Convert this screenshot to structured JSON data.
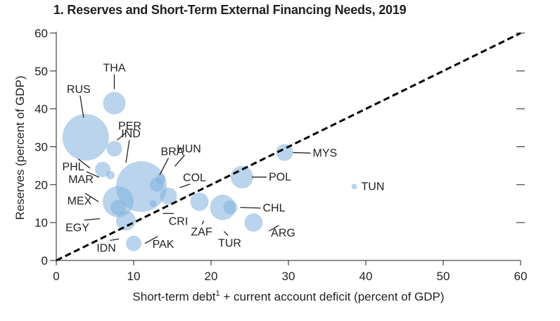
{
  "chart_data": {
    "type": "scatter",
    "title": "1. Reserves and Short-Term External Financing Needs, 2019",
    "xlabel": "Short-term debt",
    "xlabel_sup": "1",
    "xlabel_rest": " + current account deficit (percent of GDP)",
    "ylabel": "Reserves (percent of GDP)",
    "xlim": [
      0,
      60
    ],
    "ylim": [
      0,
      60
    ],
    "xticks": [
      0,
      10,
      20,
      30,
      40,
      50,
      60
    ],
    "yticks": [
      0,
      10,
      20,
      30,
      40,
      50,
      60
    ],
    "reference_line": {
      "style": "dashed",
      "from": [
        0,
        0
      ],
      "to": [
        60,
        60
      ]
    },
    "bubble_color": "#7fb0dc",
    "points": [
      {
        "label": "THA",
        "x": 7.5,
        "y": 41.5,
        "size": 16
      },
      {
        "label": "RUS",
        "x": 3.8,
        "y": 32.5,
        "size": 33
      },
      {
        "label": "PER",
        "x": 7.5,
        "y": 29.5,
        "size": 11
      },
      {
        "label": "IND",
        "x": 11.0,
        "y": 19.5,
        "size": 36
      },
      {
        "label": "BRA",
        "x": 13.0,
        "y": 20.0,
        "size": 10
      },
      {
        "label": "HUN",
        "x": 13.5,
        "y": 21.5,
        "size": 7
      },
      {
        "label": "COL",
        "x": 14.5,
        "y": 17.0,
        "size": 12
      },
      {
        "label": "PHL",
        "x": 6.0,
        "y": 24.0,
        "size": 11
      },
      {
        "label": "MAR",
        "x": 7.0,
        "y": 22.5,
        "size": 6
      },
      {
        "label": "MEX",
        "x": 8.0,
        "y": 15.5,
        "size": 22
      },
      {
        "label": "EGY",
        "x": 8.0,
        "y": 14.0,
        "size": 11
      },
      {
        "label": "IDN",
        "x": 9.0,
        "y": 10.5,
        "size": 14
      },
      {
        "label": "CRI",
        "x": 12.5,
        "y": 15.0,
        "size": 5
      },
      {
        "label": "PAK",
        "x": 10.0,
        "y": 4.5,
        "size": 11
      },
      {
        "label": "ZAF",
        "x": 18.5,
        "y": 15.5,
        "size": 13
      },
      {
        "label": "TUR",
        "x": 21.5,
        "y": 14.0,
        "size": 18
      },
      {
        "label": "CHL",
        "x": 22.5,
        "y": 14.0,
        "size": 10
      },
      {
        "label": "ARG",
        "x": 25.5,
        "y": 10.0,
        "size": 13
      },
      {
        "label": "POL",
        "x": 24.0,
        "y": 22.0,
        "size": 16
      },
      {
        "label": "MYS",
        "x": 29.5,
        "y": 28.5,
        "size": 12
      },
      {
        "label": "TUN",
        "x": 38.5,
        "y": 19.5,
        "size": 4
      }
    ]
  }
}
